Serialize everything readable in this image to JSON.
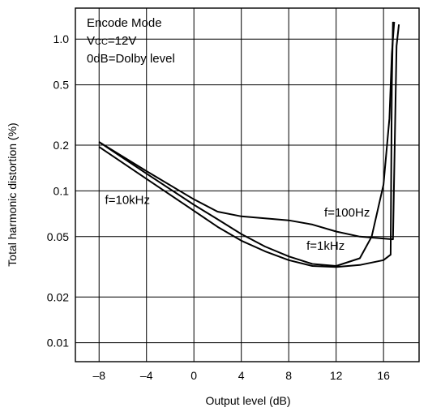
{
  "chart_data": {
    "type": "line",
    "title": "",
    "xlabel": "Output level (dB)",
    "ylabel": "Total harmonic distortion (%)",
    "xlim": [
      -10,
      19
    ],
    "ylim": [
      0.0075,
      1.6
    ],
    "y_scale": "log",
    "grid": true,
    "x_ticks": [
      -8,
      -4,
      0,
      4,
      8,
      12,
      16
    ],
    "x_tick_labels": [
      "–8",
      "–4",
      "0",
      "4",
      "8",
      "12",
      "16"
    ],
    "y_ticks": [
      0.01,
      0.02,
      0.05,
      0.1,
      0.2,
      0.5,
      1.0
    ],
    "y_tick_labels": [
      "0.01",
      "0.02",
      "0.05",
      "0.1",
      "0.2",
      "0.5",
      "1.0"
    ],
    "annotation_lines": [
      "Encode Mode",
      "VCC=12V",
      "0dB=Dolby level"
    ],
    "series": [
      {
        "name": "f=10kHz",
        "points": [
          [
            -8,
            0.21
          ],
          [
            -4,
            0.135
          ],
          [
            0,
            0.088
          ],
          [
            2,
            0.073
          ],
          [
            4,
            0.068
          ],
          [
            6,
            0.066
          ],
          [
            8,
            0.064
          ],
          [
            10,
            0.06
          ],
          [
            12,
            0.054
          ],
          [
            14,
            0.05
          ],
          [
            16.8,
            0.048
          ],
          [
            17.1,
            0.9
          ],
          [
            17.3,
            1.25
          ]
        ]
      },
      {
        "name": "f=100Hz",
        "points": [
          [
            -8,
            0.21
          ],
          [
            -4,
            0.13
          ],
          [
            0,
            0.081
          ],
          [
            2,
            0.065
          ],
          [
            4,
            0.052
          ],
          [
            6,
            0.043
          ],
          [
            8,
            0.037
          ],
          [
            10,
            0.033
          ],
          [
            12,
            0.032
          ],
          [
            14,
            0.036
          ],
          [
            15,
            0.05
          ],
          [
            16,
            0.11
          ],
          [
            16.5,
            0.3
          ],
          [
            16.7,
            0.8
          ],
          [
            16.9,
            1.3
          ]
        ]
      },
      {
        "name": "f=1kHz",
        "points": [
          [
            -8,
            0.195
          ],
          [
            -4,
            0.12
          ],
          [
            0,
            0.074
          ],
          [
            2,
            0.058
          ],
          [
            4,
            0.047
          ],
          [
            6,
            0.04
          ],
          [
            8,
            0.035
          ],
          [
            10,
            0.032
          ],
          [
            12,
            0.0315
          ],
          [
            14,
            0.0325
          ],
          [
            16,
            0.035
          ],
          [
            16.6,
            0.038
          ],
          [
            16.7,
            0.5
          ],
          [
            16.8,
            1.3
          ]
        ]
      }
    ],
    "labels": [
      {
        "text": "f=10kHz",
        "x": -7.5,
        "y": 0.082
      },
      {
        "text": "f=100Hz",
        "x": 11,
        "y": 0.068
      },
      {
        "text": "f=1kHz",
        "x": 9.5,
        "y": 0.041
      }
    ]
  }
}
